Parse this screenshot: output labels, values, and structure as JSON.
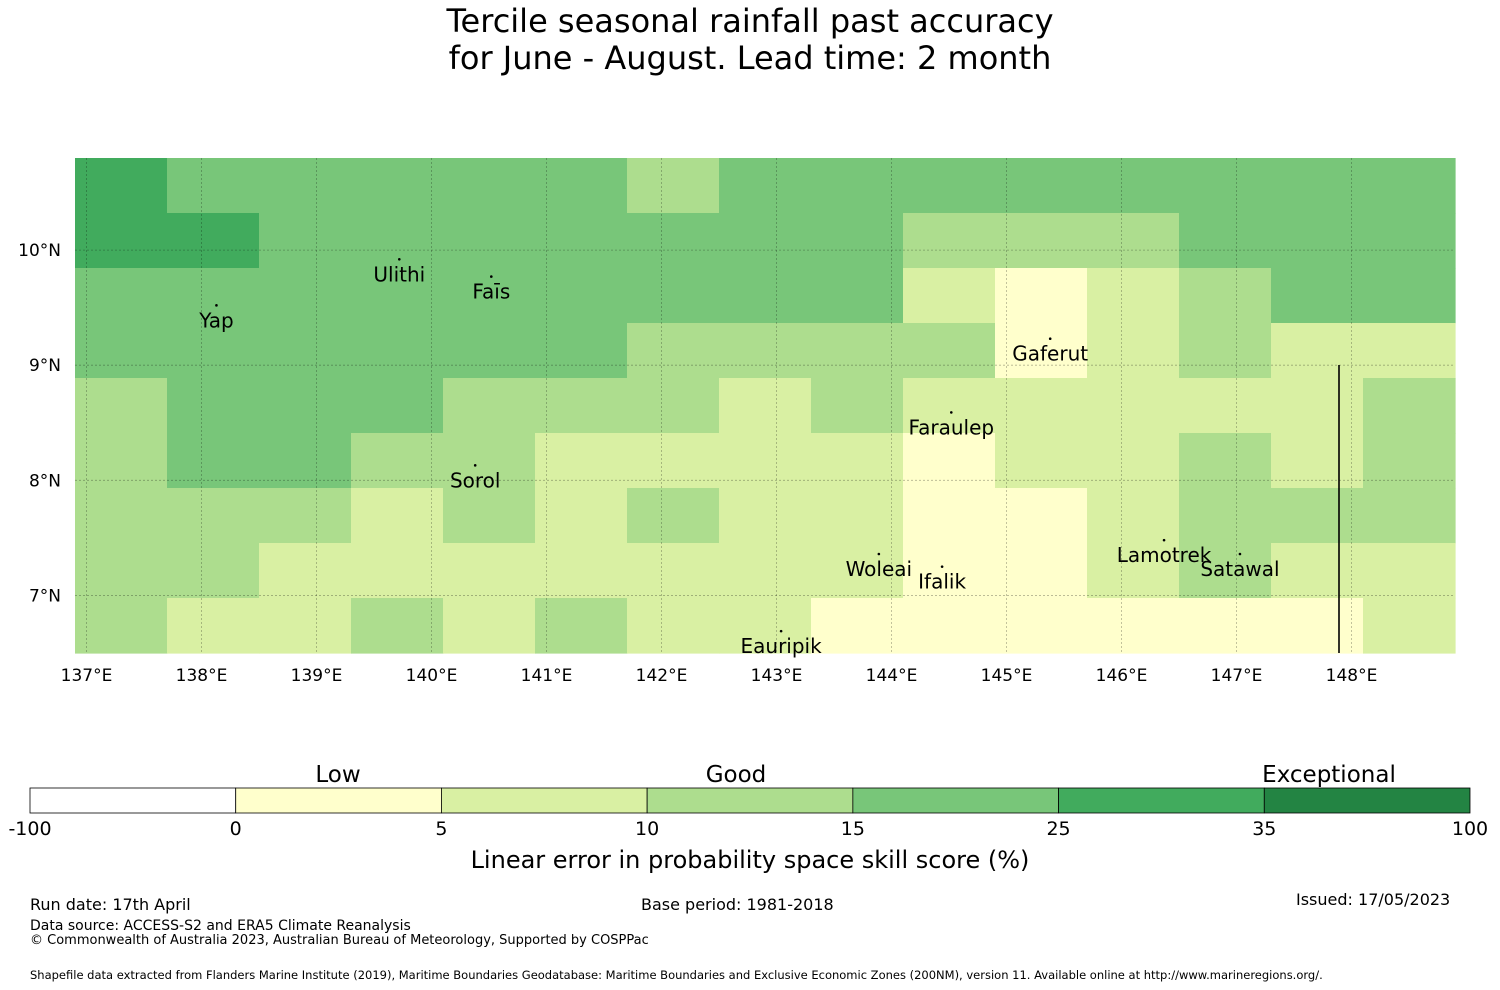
{
  "title": {
    "line1": "Tercile seasonal rainfall past accuracy",
    "line2": "for June - August. Lead time: 2 month"
  },
  "map": {
    "lon_ticks": [
      "137°E",
      "138°E",
      "139°E",
      "140°E",
      "141°E",
      "142°E",
      "143°E",
      "144°E",
      "145°E",
      "146°E",
      "147°E",
      "148°E"
    ],
    "lat_ticks": [
      "10°N",
      "9°N",
      "8°N",
      "7°N"
    ],
    "lon_range": [
      136.9,
      148.9
    ],
    "lat_range": [
      6.5,
      10.8
    ],
    "islands": [
      {
        "name": "Ulithi",
        "lon": 139.72,
        "lat": 9.92
      },
      {
        "name": "Faīs",
        "lon": 140.52,
        "lat": 9.77
      },
      {
        "name": "Yap",
        "lon": 138.13,
        "lat": 9.52
      },
      {
        "name": "Gaferut",
        "lon": 145.38,
        "lat": 9.23
      },
      {
        "name": "Faraulep",
        "lon": 144.52,
        "lat": 8.59
      },
      {
        "name": "Sorol",
        "lon": 140.38,
        "lat": 8.13
      },
      {
        "name": "Woleai",
        "lon": 143.89,
        "lat": 7.36
      },
      {
        "name": "Ifalik",
        "lon": 144.44,
        "lat": 7.25
      },
      {
        "name": "Lamotrek",
        "lon": 146.37,
        "lat": 7.48
      },
      {
        "name": "Satawal",
        "lon": 147.03,
        "lat": 7.36
      },
      {
        "name": "Eauripik",
        "lon": 143.04,
        "lat": 6.69
      }
    ],
    "grid_colors": [
      [
        "#41ab5d",
        "#78c679",
        "#78c679",
        "#78c679",
        "#78c679",
        "#78c679",
        "#addd8e",
        "#78c679",
        "#78c679",
        "#78c679",
        "#78c679",
        "#78c679",
        "#78c679",
        "#78c679",
        "#78c679"
      ],
      [
        "#41ab5d",
        "#41ab5d",
        "#78c679",
        "#78c679",
        "#78c679",
        "#78c679",
        "#78c679",
        "#78c679",
        "#78c679",
        "#addd8e",
        "#addd8e",
        "#addd8e",
        "#78c679",
        "#78c679",
        "#78c679"
      ],
      [
        "#78c679",
        "#78c679",
        "#78c679",
        "#78c679",
        "#78c679",
        "#78c679",
        "#78c679",
        "#78c679",
        "#78c679",
        "#d9f0a3",
        "#ffffcc",
        "#d9f0a3",
        "#addd8e",
        "#78c679",
        "#78c679"
      ],
      [
        "#78c679",
        "#78c679",
        "#78c679",
        "#78c679",
        "#78c679",
        "#78c679",
        "#addd8e",
        "#addd8e",
        "#addd8e",
        "#addd8e",
        "#ffffcc",
        "#d9f0a3",
        "#addd8e",
        "#d9f0a3",
        "#d9f0a3"
      ],
      [
        "#addd8e",
        "#78c679",
        "#78c679",
        "#78c679",
        "#addd8e",
        "#addd8e",
        "#addd8e",
        "#d9f0a3",
        "#addd8e",
        "#d9f0a3",
        "#d9f0a3",
        "#d9f0a3",
        "#d9f0a3",
        "#d9f0a3",
        "#addd8e"
      ],
      [
        "#addd8e",
        "#78c679",
        "#78c679",
        "#addd8e",
        "#addd8e",
        "#d9f0a3",
        "#d9f0a3",
        "#d9f0a3",
        "#d9f0a3",
        "#ffffcc",
        "#d9f0a3",
        "#d9f0a3",
        "#addd8e",
        "#d9f0a3",
        "#addd8e"
      ],
      [
        "#addd8e",
        "#addd8e",
        "#addd8e",
        "#d9f0a3",
        "#addd8e",
        "#d9f0a3",
        "#addd8e",
        "#d9f0a3",
        "#d9f0a3",
        "#ffffcc",
        "#ffffcc",
        "#d9f0a3",
        "#addd8e",
        "#addd8e",
        "#addd8e"
      ],
      [
        "#addd8e",
        "#addd8e",
        "#d9f0a3",
        "#d9f0a3",
        "#d9f0a3",
        "#d9f0a3",
        "#d9f0a3",
        "#d9f0a3",
        "#d9f0a3",
        "#ffffcc",
        "#ffffcc",
        "#d9f0a3",
        "#addd8e",
        "#d9f0a3",
        "#d9f0a3"
      ],
      [
        "#addd8e",
        "#d9f0a3",
        "#d9f0a3",
        "#addd8e",
        "#d9f0a3",
        "#addd8e",
        "#d9f0a3",
        "#d9f0a3",
        "#ffffcc",
        "#ffffcc",
        "#ffffcc",
        "#ffffcc",
        "#ffffcc",
        "#ffffcc",
        "#d9f0a3"
      ]
    ]
  },
  "colorbar": {
    "category_labels": [
      "Low",
      "Good",
      "Exceptional"
    ],
    "bins": [
      {
        "from": "-100",
        "to": "0",
        "color": "#ffffff"
      },
      {
        "from": "0",
        "to": "5",
        "color": "#ffffcc"
      },
      {
        "from": "5",
        "to": "10",
        "color": "#d9f0a3"
      },
      {
        "from": "10",
        "to": "15",
        "color": "#addd8e"
      },
      {
        "from": "15",
        "to": "25",
        "color": "#78c679"
      },
      {
        "from": "25",
        "to": "35",
        "color": "#41ab5d"
      },
      {
        "from": "35",
        "to": "100",
        "color": "#238443"
      }
    ],
    "tick_labels": [
      "-100",
      "0",
      "5",
      "10",
      "15",
      "25",
      "35",
      "100"
    ],
    "label": "Linear error in probability space skill score (%)"
  },
  "footer": {
    "run_date": "Run date: 17th April",
    "base_period": "Base period: 1981-2018",
    "issued": "Issued: 17/05/2023",
    "data_source": "Data source: ACCESS-S2 and ERA5 Climate Reanalysis",
    "copyright": "© Commonwealth of Australia 2023, Australian Bureau of Meteorology, Supported by COSPPac",
    "shapefile": "Shapefile data extracted from Flanders Marine Institute (2019), Maritime Boundaries Geodatabase: Maritime Boundaries and Exclusive Economic Zones (200NM), version 11. Available online at http://www.marineregions.org/."
  }
}
